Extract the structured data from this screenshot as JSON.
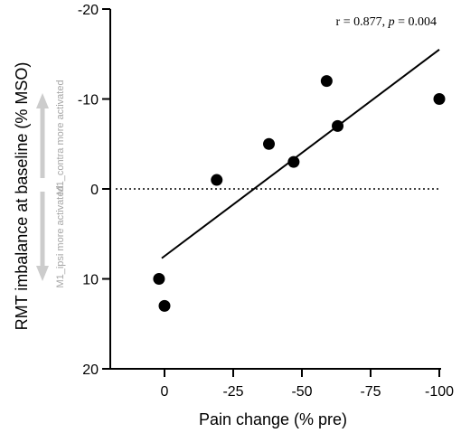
{
  "chart_data": {
    "type": "scatter",
    "xlabel": "Pain change (% pre)",
    "ylabel": "RMT imbalance at baseline (% MSO)",
    "xlim": [
      0,
      -100
    ],
    "ylim": [
      20,
      -20
    ],
    "x_ticks": [
      0,
      -25,
      -50,
      -75,
      -100
    ],
    "x_tick_labels": [
      "0",
      "-25",
      "-50",
      "-75",
      "-100"
    ],
    "y_ticks": [
      -20,
      -10,
      0,
      10,
      20
    ],
    "y_tick_labels": [
      "-20",
      "-10",
      "0",
      "10",
      "20"
    ],
    "points": [
      {
        "x": 2,
        "y": 10
      },
      {
        "x": 0,
        "y": 13
      },
      {
        "x": -19,
        "y": -1
      },
      {
        "x": -38,
        "y": -5
      },
      {
        "x": -47,
        "y": -3
      },
      {
        "x": -59,
        "y": -12
      },
      {
        "x": -63,
        "y": -7
      },
      {
        "x": -100,
        "y": -10
      }
    ],
    "regression_line": {
      "x1": 1,
      "y1": 7.7,
      "x2": -100,
      "y2": -15.5
    },
    "reference_line": {
      "y": 0,
      "style": "dotted"
    },
    "annotation": {
      "r_text": "r = 0.877, ",
      "p_symbol": "p",
      "p_text": " = 0.004"
    },
    "side_notes": {
      "upper": "M1_contra more activated",
      "lower": "M1_ipsi more activated"
    },
    "colors": {
      "points": "#000000",
      "side_notes": "#a6a6a6",
      "arrows": "#cccccc"
    },
    "grid": false,
    "legend": "none"
  }
}
